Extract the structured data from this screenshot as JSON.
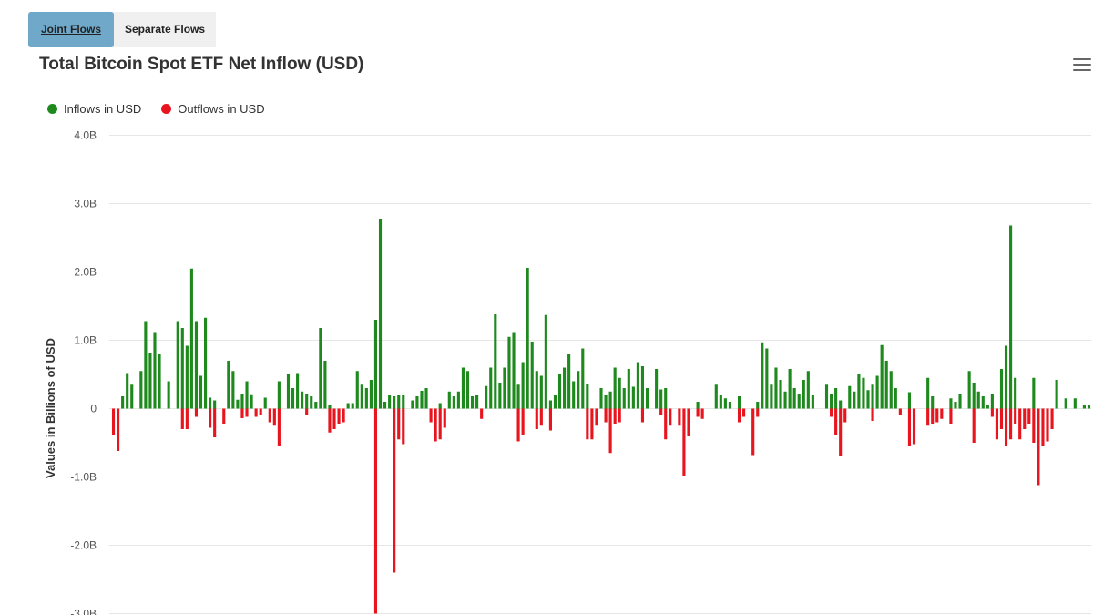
{
  "tabs": [
    {
      "label": "Joint Flows",
      "active": true
    },
    {
      "label": "Separate Flows",
      "active": false
    }
  ],
  "menu_icon": "hamburger-menu-icon",
  "colors": {
    "inflow": "#1e8a1e",
    "outflow": "#e8141e",
    "grid": "#e6e6e6",
    "active_tab": "#6fa8c8"
  },
  "chart_data": {
    "type": "bar",
    "title": "Total Bitcoin Spot ETF Net Inflow (USD)",
    "ylabel": "Values in Billions of USD",
    "xlabel": "",
    "ylim": [
      -3.0,
      4.0
    ],
    "yticks": [
      4.0,
      3.0,
      2.0,
      1.0,
      0,
      -1.0,
      -2.0,
      -3.0
    ],
    "ytick_labels": [
      "4.0B",
      "3.0B",
      "2.0B",
      "1.0B",
      "0",
      "-1.0B",
      "-2.0B",
      "-3.0B"
    ],
    "grid": true,
    "legend_position": "top-left",
    "series": [
      {
        "name": "Inflows in USD",
        "color": "#1e8a1e",
        "values": [
          0.0,
          0.0,
          0.18,
          0.52,
          0.35,
          0.0,
          0.55,
          1.28,
          0.82,
          1.12,
          0.8,
          0.0,
          0.4,
          0.0,
          1.28,
          1.18,
          0.92,
          2.05,
          1.28,
          0.48,
          1.33,
          0.16,
          0.12,
          0.0,
          0.0,
          0.7,
          0.55,
          0.13,
          0.22,
          0.4,
          0.21,
          0.0,
          0.0,
          0.16,
          0.0,
          0.0,
          0.4,
          0.0,
          0.5,
          0.3,
          0.52,
          0.25,
          0.22,
          0.18,
          0.1,
          1.18,
          0.7,
          0.05,
          0.0,
          0.0,
          0.0,
          0.08,
          0.08,
          0.55,
          0.35,
          0.3,
          0.42,
          1.3,
          2.78,
          0.1,
          0.2,
          0.18,
          0.2,
          0.2,
          0.0,
          0.12,
          0.18,
          0.26,
          0.3,
          0.0,
          0.0,
          0.08,
          0.0,
          0.25,
          0.18,
          0.25,
          0.6,
          0.55,
          0.18,
          0.2,
          0.0,
          0.33,
          0.6,
          1.38,
          0.38,
          0.6,
          1.05,
          1.12,
          0.35,
          0.68,
          2.06,
          0.98,
          0.55,
          0.48,
          1.37,
          0.12,
          0.2,
          0.5,
          0.6,
          0.8,
          0.4,
          0.55,
          0.88,
          0.36,
          0.0,
          0.0,
          0.3,
          0.2,
          0.25,
          0.6,
          0.45,
          0.3,
          0.58,
          0.32,
          0.68,
          0.62,
          0.3,
          0.0,
          0.58,
          0.28,
          0.3,
          0.0,
          0.0,
          0.0,
          0.0,
          0.0,
          0.0,
          0.1,
          0.0,
          0.0,
          0.0,
          0.35,
          0.2,
          0.15,
          0.1,
          0.0,
          0.18,
          0.0,
          0.0,
          0.0,
          0.1,
          0.97,
          0.88,
          0.35,
          0.6,
          0.42,
          0.25,
          0.58,
          0.3,
          0.22,
          0.42,
          0.55,
          0.2,
          0.0,
          0.0,
          0.35,
          0.22,
          0.3,
          0.12,
          0.0,
          0.33,
          0.25,
          0.5,
          0.45,
          0.27,
          0.35,
          0.48,
          0.93,
          0.7,
          0.55,
          0.3,
          0.0,
          0.0,
          0.24,
          0.0,
          0.0,
          0.0,
          0.45,
          0.18,
          0.0,
          0.0,
          0.0,
          0.15,
          0.1,
          0.22,
          0.0,
          0.55,
          0.38,
          0.25,
          0.18,
          0.05,
          0.22,
          0.0,
          0.58,
          0.92,
          2.68,
          0.45,
          0.0,
          0.0,
          0.0,
          0.45,
          0.0,
          0.0,
          0.0,
          0.0,
          0.42,
          0.0,
          0.15,
          0.0,
          0.15,
          0.0,
          0.05,
          0.05
        ]
      },
      {
        "name": "Outflows in USD",
        "color": "#e8141e",
        "values": [
          -0.38,
          -0.62,
          0.0,
          0.0,
          0.0,
          0.0,
          0.0,
          0.0,
          0.0,
          0.0,
          0.0,
          0.0,
          0.0,
          0.0,
          0.0,
          -0.3,
          -0.3,
          0.0,
          -0.12,
          0.0,
          0.0,
          -0.28,
          -0.42,
          0.0,
          -0.22,
          0.0,
          0.0,
          0.0,
          -0.14,
          -0.12,
          0.0,
          -0.12,
          -0.1,
          0.0,
          -0.2,
          -0.25,
          -0.55,
          0.0,
          0.0,
          0.0,
          0.0,
          0.0,
          -0.1,
          0.0,
          0.0,
          0.0,
          0.0,
          -0.35,
          -0.3,
          -0.22,
          -0.2,
          0.0,
          0.0,
          0.0,
          0.0,
          0.0,
          0.0,
          -3.0,
          0.0,
          0.0,
          0.0,
          -2.4,
          -0.45,
          -0.52,
          0.0,
          0.0,
          0.0,
          0.0,
          0.0,
          -0.2,
          -0.48,
          -0.45,
          -0.28,
          0.0,
          0.0,
          0.0,
          0.0,
          0.0,
          0.0,
          0.0,
          -0.15,
          0.0,
          0.0,
          0.0,
          0.0,
          0.0,
          0.0,
          0.0,
          -0.48,
          -0.38,
          0.0,
          0.0,
          -0.3,
          -0.25,
          0.0,
          -0.32,
          0.0,
          0.0,
          0.0,
          0.0,
          0.0,
          0.0,
          0.0,
          -0.45,
          -0.45,
          -0.25,
          0.0,
          -0.2,
          -0.65,
          -0.22,
          -0.2,
          0.0,
          0.0,
          0.0,
          0.0,
          -0.2,
          0.0,
          0.0,
          0.0,
          -0.1,
          -0.45,
          -0.25,
          0.0,
          -0.25,
          -0.98,
          -0.4,
          0.0,
          -0.12,
          -0.15,
          0.0,
          0.0,
          0.0,
          0.0,
          0.0,
          0.0,
          0.0,
          -0.2,
          -0.12,
          0.0,
          -0.68,
          -0.12,
          0.0,
          0.0,
          0.0,
          0.0,
          0.0,
          0.0,
          0.0,
          0.0,
          0.0,
          0.0,
          0.0,
          0.0,
          0.0,
          0.0,
          0.0,
          -0.12,
          -0.38,
          -0.7,
          -0.2,
          0.0,
          0.0,
          0.0,
          0.0,
          0.0,
          -0.18,
          0.0,
          0.0,
          0.0,
          0.0,
          0.0,
          -0.1,
          0.0,
          -0.55,
          -0.52,
          0.0,
          0.0,
          -0.25,
          -0.22,
          -0.2,
          -0.15,
          0.0,
          -0.22,
          0.0,
          0.0,
          0.0,
          0.0,
          -0.5,
          0.0,
          0.0,
          0.0,
          -0.12,
          -0.45,
          -0.3,
          -0.55,
          -0.45,
          -0.22,
          -0.45,
          -0.3,
          -0.22,
          -0.5,
          -1.12,
          -0.55,
          -0.48,
          -0.3,
          0.0,
          0.0,
          0.0
        ]
      }
    ]
  }
}
